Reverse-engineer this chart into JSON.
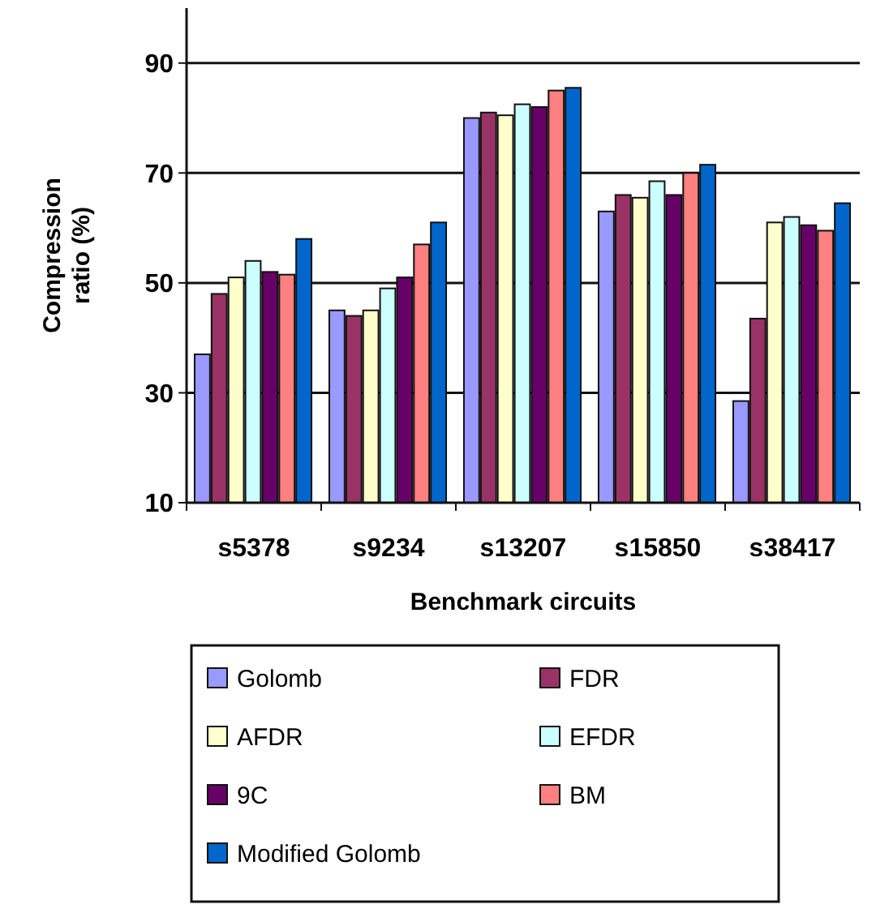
{
  "chart_data": {
    "type": "bar",
    "xlabel": "Benchmark circuits",
    "ylabel": "Compression ratio (%)",
    "categories": [
      "s5378",
      "s9234",
      "s13207",
      "s15850",
      "s38417"
    ],
    "series": [
      {
        "name": "Golomb",
        "color": "#9999ff",
        "values": [
          37,
          45,
          80,
          63,
          28.5
        ]
      },
      {
        "name": "FDR",
        "color": "#993366",
        "values": [
          48,
          44,
          81,
          66,
          43.5
        ]
      },
      {
        "name": "AFDR",
        "color": "#ffffcc",
        "values": [
          51,
          45,
          80.5,
          65.5,
          61
        ]
      },
      {
        "name": "EFDR",
        "color": "#ccffff",
        "values": [
          54,
          49,
          82.5,
          68.5,
          62
        ]
      },
      {
        "name": "9C",
        "color": "#660066",
        "values": [
          52,
          51,
          82,
          66,
          60.5
        ]
      },
      {
        "name": "BM",
        "color": "#ff8080",
        "values": [
          51.5,
          57,
          85,
          70,
          59.5
        ]
      },
      {
        "name": "Modified Golomb",
        "color": "#0066cc",
        "values": [
          58,
          61,
          85.5,
          71.5,
          64.5
        ]
      }
    ],
    "ylim": [
      10,
      100
    ],
    "yticks": [
      10,
      30,
      50,
      70,
      90
    ],
    "grid": "y",
    "legend": "bottom"
  }
}
